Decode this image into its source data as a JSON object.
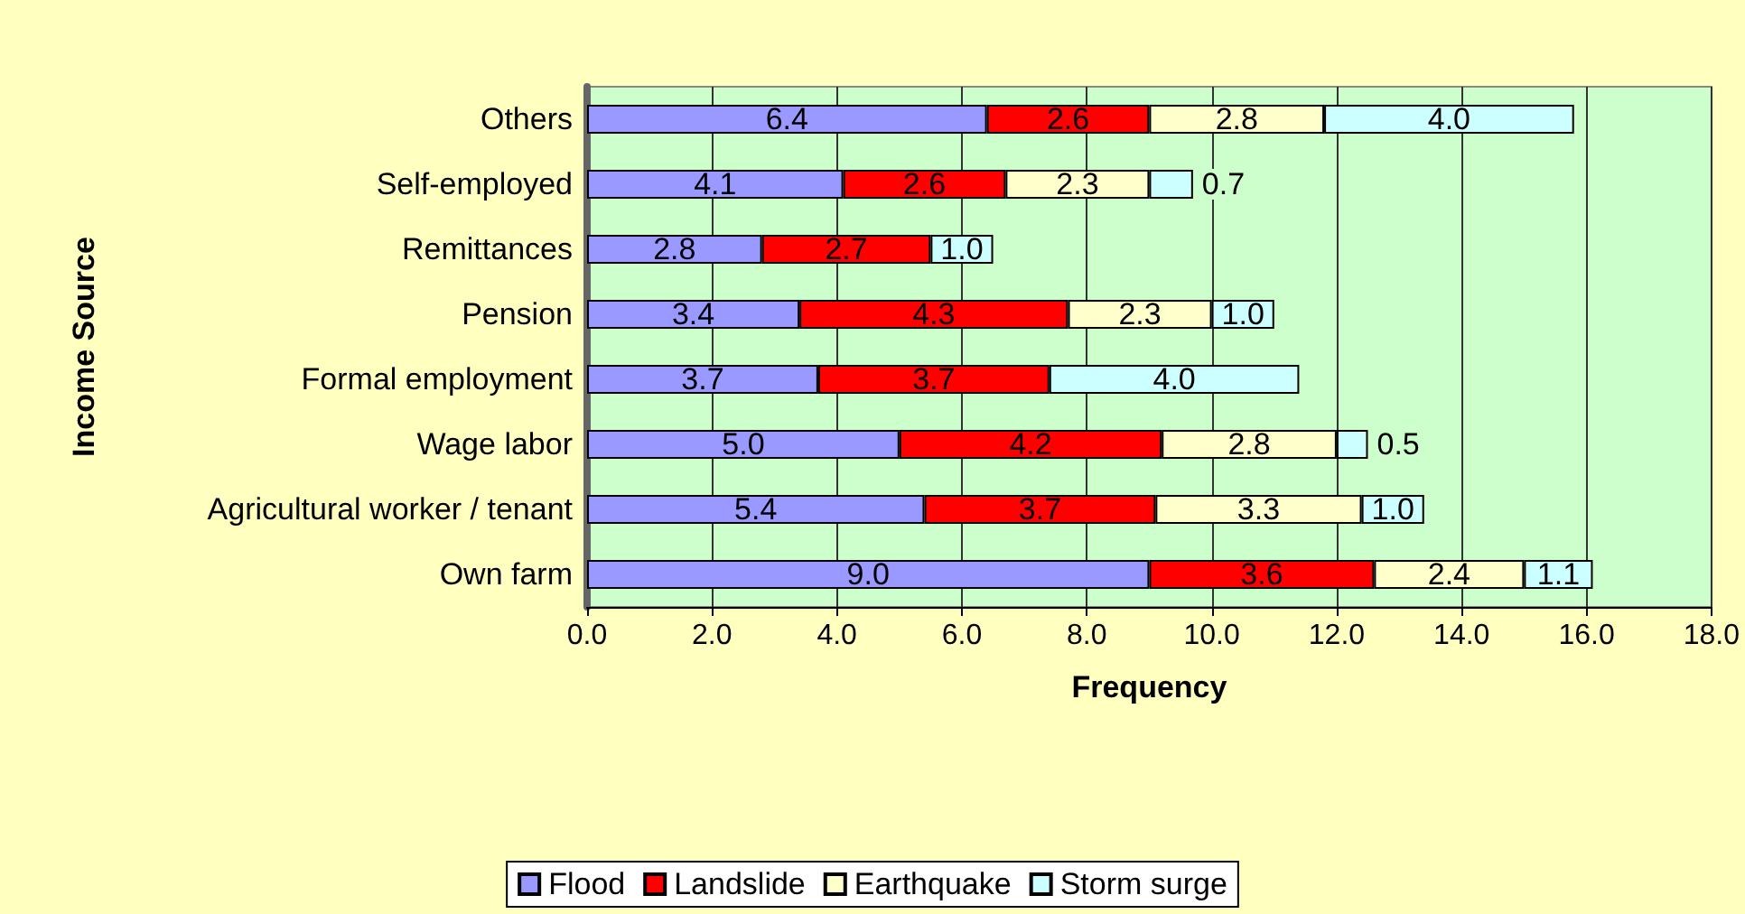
{
  "chart_data": {
    "type": "bar",
    "orientation": "horizontal",
    "stacked": true,
    "xlabel": "Frequency",
    "ylabel": "Income Source",
    "categories": [
      "Others",
      "Self-employed",
      "Remittances",
      "Pension",
      "Formal employment",
      "Wage labor",
      "Agricultural worker / tenant",
      "Own farm"
    ],
    "series": [
      {
        "name": "Flood",
        "color": "#9999ff",
        "values": [
          6.4,
          4.1,
          2.8,
          3.4,
          3.7,
          5.0,
          5.4,
          9.0
        ],
        "value_labels": [
          "6.4",
          "4.1",
          "2.8",
          "3.4",
          "3.7",
          "5.0",
          "5.4",
          "9.0"
        ]
      },
      {
        "name": "Landslide",
        "color": "#ff0000",
        "values": [
          2.6,
          2.6,
          2.7,
          4.3,
          3.7,
          4.2,
          3.7,
          3.6
        ],
        "value_labels": [
          "2.6",
          "2.6",
          "2.7",
          "4.3",
          "3.7",
          "4.2",
          "3.7",
          "3.6"
        ]
      },
      {
        "name": "Earthquake",
        "color": "#ffffcc",
        "values": [
          2.8,
          2.3,
          null,
          2.3,
          null,
          2.8,
          3.3,
          2.4
        ],
        "value_labels": [
          "2.8",
          "2.3",
          null,
          "2.3",
          null,
          "2.8",
          "3.3",
          "2.4"
        ]
      },
      {
        "name": "Storm surge",
        "color": "#ccffff",
        "values": [
          4.0,
          0.7,
          1.0,
          1.0,
          4.0,
          0.5,
          1.0,
          1.1
        ],
        "value_labels": [
          "4.0",
          "0.7",
          "1.0",
          "1.0",
          "4.0",
          "0.5",
          "1.0",
          "1.1"
        ]
      }
    ],
    "xlim": [
      0,
      18
    ],
    "xticks": [
      {
        "value": 0,
        "label": "0.0"
      },
      {
        "value": 2,
        "label": "2.0"
      },
      {
        "value": 4,
        "label": "4.0"
      },
      {
        "value": 6,
        "label": "6.0"
      },
      {
        "value": 8,
        "label": "8.0"
      },
      {
        "value": 10,
        "label": "10.0"
      },
      {
        "value": 12,
        "label": "12.0"
      },
      {
        "value": 14,
        "label": "14.0"
      },
      {
        "value": 16,
        "label": "16.0"
      },
      {
        "value": 18,
        "label": "18.0"
      }
    ],
    "grid": "x",
    "legend": "bottom"
  }
}
